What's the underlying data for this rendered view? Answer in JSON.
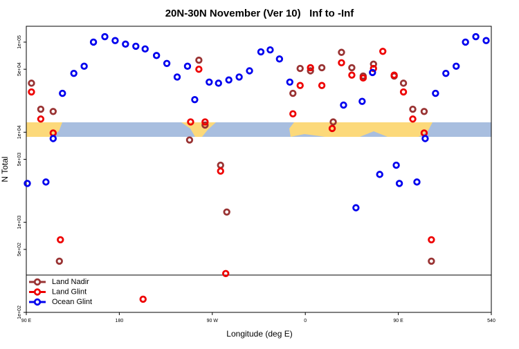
{
  "chart_data": {
    "type": "scatter",
    "title": "20N-30N November (Ver 10)   Inf to -Inf",
    "xlabel": "Longitude (deg E)",
    "ylabel": "N Total",
    "xlim": [
      90,
      540
    ],
    "ylim": [
      100,
      150000
    ],
    "log_y": true,
    "xticks": [
      {
        "value": 90,
        "label": "90 E"
      },
      180,
      {
        "value": 270,
        "label": "90 W"
      },
      {
        "value": 360,
        "label": "0"
      },
      {
        "value": 450,
        "label": "90 E"
      },
      540
    ],
    "yticks": [
      {
        "value": 100,
        "label": "1e+02"
      },
      {
        "value": 500,
        "label": "5e+02"
      },
      {
        "value": 1000,
        "label": "1e+03"
      },
      {
        "value": 5000,
        "label": "5e+03"
      },
      {
        "value": 10000,
        "label": "1e+04"
      },
      {
        "value": 50000,
        "label": "5e+04"
      },
      {
        "value": 100000,
        "label": "1e+05"
      }
    ],
    "legend": "bottom-left",
    "series": [
      {
        "name": "Land Nadir",
        "color": "#993333",
        "x": [
          95,
          104,
          116,
          122,
          248,
          257,
          263,
          278,
          284,
          348,
          355,
          365,
          376,
          387,
          395,
          405,
          416,
          426,
          446,
          455,
          464,
          475,
          482
        ],
        "values": [
          35000,
          18000,
          17000,
          370,
          8200,
          63000,
          12000,
          4300,
          1300,
          27000,
          51000,
          48000,
          52000,
          13000,
          77000,
          52000,
          42000,
          57000,
          42000,
          35000,
          18000,
          17000,
          370
        ]
      },
      {
        "name": "Land Glint",
        "color": "#ee0000",
        "x": [
          95,
          104,
          116,
          123,
          203,
          249,
          257,
          263,
          278,
          283,
          348,
          355,
          365,
          376,
          386,
          395,
          405,
          416,
          426,
          435,
          446,
          455,
          464,
          475,
          482
        ],
        "values": [
          28000,
          14000,
          9800,
          640,
          140,
          13000,
          50000,
          13000,
          3700,
          270,
          16000,
          33000,
          52000,
          33000,
          11000,
          59000,
          43000,
          40000,
          51000,
          79000,
          43000,
          28000,
          14000,
          9800,
          640
        ]
      },
      {
        "name": "Ocean Glint",
        "color": "#0000ee",
        "x": [
          91,
          109,
          116,
          125,
          136,
          146,
          155,
          166,
          176,
          186,
          196,
          205,
          216,
          226,
          236,
          246,
          253,
          267,
          276,
          286,
          296,
          306,
          317,
          326,
          335,
          345,
          397,
          409,
          415,
          425,
          432,
          448,
          451,
          468,
          476,
          486,
          496,
          506,
          515,
          525,
          535
        ],
        "values": [
          2700,
          2800,
          8500,
          27000,
          45000,
          54000,
          100000,
          115000,
          104000,
          95000,
          90000,
          84000,
          71000,
          58000,
          41000,
          54000,
          23000,
          36000,
          35000,
          38000,
          41000,
          48000,
          78000,
          82000,
          65000,
          36000,
          20000,
          1450,
          22000,
          46000,
          3400,
          4300,
          2700,
          2800,
          8500,
          27000,
          45000,
          54000,
          100000,
          115000,
          104000
        ]
      }
    ]
  }
}
